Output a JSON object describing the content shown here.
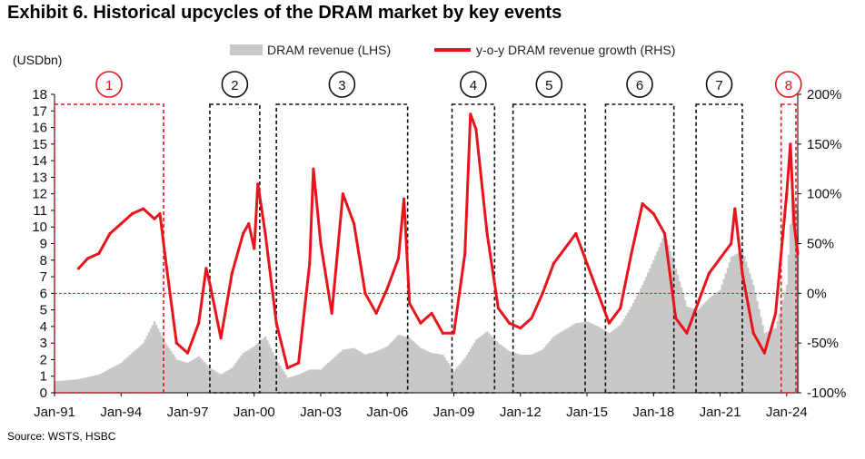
{
  "header": {
    "title": "Exhibit 6. Historical upcycles of the DRAM market by key events",
    "source": "Source: WSTS, HSBC"
  },
  "chart_data": {
    "type": "bar+line",
    "title": "Exhibit 6. Historical upcycles of the DRAM market by key events",
    "ylabel_left": "(USDbn)",
    "ylim_left": [
      0,
      18
    ],
    "yticks_left": [
      "0",
      "1",
      "2",
      "3",
      "4",
      "5",
      "6",
      "7",
      "8",
      "9",
      "10",
      "11",
      "12",
      "13",
      "14",
      "15",
      "16",
      "17",
      "18"
    ],
    "ylim_right": [
      -100,
      200
    ],
    "yticks_right": [
      "-100%",
      "-50%",
      "0%",
      "50%",
      "100%",
      "150%",
      "200%"
    ],
    "xticks": [
      "Jan-91",
      "Jan-94",
      "Jan-97",
      "Jan-00",
      "Jan-03",
      "Jan-06",
      "Jan-09",
      "Jan-12",
      "Jan-15",
      "Jan-18",
      "Jan-21",
      "Jan-24"
    ],
    "x_start": "Jan-91",
    "x_end": "Jul-24",
    "legend": [
      "DRAM revenue (LHS)",
      "y-o-y DRAM revenue growth (RHS)"
    ],
    "colors": {
      "revenue": "#c8c8c8",
      "growth": "#e8141c",
      "box_red": "#e8141c",
      "box_black": "#111111"
    },
    "revenue_lhs": {
      "name": "DRAM revenue (LHS)",
      "points": [
        [
          "Jan-91",
          0.7
        ],
        [
          "Jan-92",
          0.8
        ],
        [
          "Jan-93",
          1.1
        ],
        [
          "Jan-94",
          1.8
        ],
        [
          "Jan-95",
          3.0
        ],
        [
          "Jul-95",
          4.3
        ],
        [
          "Jan-96",
          3.0
        ],
        [
          "Jul-96",
          2.0
        ],
        [
          "Jan-97",
          1.8
        ],
        [
          "Jul-97",
          2.2
        ],
        [
          "Jan-98",
          1.5
        ],
        [
          "Jul-98",
          1.1
        ],
        [
          "Jan-99",
          1.5
        ],
        [
          "Jul-99",
          2.4
        ],
        [
          "Jan-00",
          2.8
        ],
        [
          "Jul-00",
          3.4
        ],
        [
          "Jan-01",
          2.0
        ],
        [
          "Jul-01",
          0.9
        ],
        [
          "Jan-02",
          1.1
        ],
        [
          "Jul-02",
          1.4
        ],
        [
          "Jan-03",
          1.4
        ],
        [
          "Jul-03",
          2.0
        ],
        [
          "Jan-04",
          2.6
        ],
        [
          "Jul-04",
          2.7
        ],
        [
          "Jan-05",
          2.3
        ],
        [
          "Jul-05",
          2.5
        ],
        [
          "Jan-06",
          2.8
        ],
        [
          "Jul-06",
          3.5
        ],
        [
          "Jan-07",
          3.3
        ],
        [
          "Jul-07",
          2.7
        ],
        [
          "Jan-08",
          2.4
        ],
        [
          "Jul-08",
          2.3
        ],
        [
          "Jan-09",
          1.3
        ],
        [
          "Jul-09",
          2.1
        ],
        [
          "Jan-10",
          3.2
        ],
        [
          "Jul-10",
          3.7
        ],
        [
          "Jan-11",
          3.0
        ],
        [
          "Jul-11",
          2.5
        ],
        [
          "Jan-12",
          2.3
        ],
        [
          "Jul-12",
          2.3
        ],
        [
          "Jan-13",
          2.6
        ],
        [
          "Jul-13",
          3.4
        ],
        [
          "Jan-14",
          3.8
        ],
        [
          "Jul-14",
          4.2
        ],
        [
          "Jan-15",
          4.3
        ],
        [
          "Jul-15",
          4.0
        ],
        [
          "Jan-16",
          3.6
        ],
        [
          "Jul-16",
          4.1
        ],
        [
          "Jan-17",
          5.2
        ],
        [
          "Jul-17",
          6.5
        ],
        [
          "Jan-18",
          8.0
        ],
        [
          "Jul-18",
          9.6
        ],
        [
          "Jan-19",
          7.5
        ],
        [
          "Jul-19",
          5.2
        ],
        [
          "Jan-20",
          5.0
        ],
        [
          "Jul-20",
          5.7
        ],
        [
          "Jan-21",
          6.2
        ],
        [
          "Jul-21",
          8.2
        ],
        [
          "Jan-22",
          8.6
        ],
        [
          "Jul-22",
          6.5
        ],
        [
          "Jan-23",
          3.6
        ],
        [
          "Jul-23",
          3.9
        ],
        [
          "Jan-24",
          6.5
        ],
        [
          "Apr-24",
          12.0
        ],
        [
          "Jul-24",
          11.0
        ]
      ]
    },
    "growth_rhs": {
      "name": "y-o-y DRAM revenue growth (RHS)",
      "points": [
        [
          "Feb-92",
          25
        ],
        [
          "Jul-92",
          35
        ],
        [
          "Jan-93",
          40
        ],
        [
          "Jul-93",
          60
        ],
        [
          "Jan-94",
          70
        ],
        [
          "Jul-94",
          80
        ],
        [
          "Jan-95",
          85
        ],
        [
          "Jul-95",
          75
        ],
        [
          "Oct-95",
          80
        ],
        [
          "Jan-96",
          35
        ],
        [
          "Jul-96",
          -50
        ],
        [
          "Jan-97",
          -60
        ],
        [
          "Jul-97",
          -30
        ],
        [
          "Nov-97",
          25
        ],
        [
          "Jan-98",
          10
        ],
        [
          "Jul-98",
          -45
        ],
        [
          "Jan-99",
          20
        ],
        [
          "Jul-99",
          60
        ],
        [
          "Oct-99",
          70
        ],
        [
          "Jan-00",
          45
        ],
        [
          "Mar-00",
          110
        ],
        [
          "Jul-00",
          60
        ],
        [
          "Jan-01",
          -30
        ],
        [
          "Jul-01",
          -75
        ],
        [
          "Jan-02",
          -70
        ],
        [
          "Jul-02",
          30
        ],
        [
          "Sep-02",
          125
        ],
        [
          "Jan-03",
          50
        ],
        [
          "Jul-03",
          -20
        ],
        [
          "Jan-04",
          100
        ],
        [
          "Jul-04",
          70
        ],
        [
          "Jan-05",
          0
        ],
        [
          "Jul-05",
          -20
        ],
        [
          "Jan-06",
          5
        ],
        [
          "Jul-06",
          35
        ],
        [
          "Oct-06",
          95
        ],
        [
          "Jan-07",
          -10
        ],
        [
          "Jul-07",
          -30
        ],
        [
          "Jan-08",
          -20
        ],
        [
          "Jul-08",
          -40
        ],
        [
          "Jan-09",
          -40
        ],
        [
          "Jul-09",
          40
        ],
        [
          "Oct-09",
          180
        ],
        [
          "Jan-10",
          165
        ],
        [
          "Jul-10",
          60
        ],
        [
          "Jan-11",
          -15
        ],
        [
          "Jul-11",
          -30
        ],
        [
          "Jan-12",
          -35
        ],
        [
          "Jul-12",
          -25
        ],
        [
          "Jan-13",
          0
        ],
        [
          "Jul-13",
          30
        ],
        [
          "Jan-14",
          45
        ],
        [
          "Jul-14",
          60
        ],
        [
          "Jan-15",
          30
        ],
        [
          "Jul-15",
          0
        ],
        [
          "Jan-16",
          -30
        ],
        [
          "Jul-16",
          -15
        ],
        [
          "Jan-17",
          40
        ],
        [
          "Jul-17",
          90
        ],
        [
          "Jan-18",
          80
        ],
        [
          "Jul-18",
          60
        ],
        [
          "Jan-19",
          -25
        ],
        [
          "Jul-19",
          -40
        ],
        [
          "Jan-20",
          -10
        ],
        [
          "Jul-20",
          20
        ],
        [
          "Jan-21",
          35
        ],
        [
          "Jul-21",
          50
        ],
        [
          "Sep-21",
          85
        ],
        [
          "Jan-22",
          20
        ],
        [
          "Jul-22",
          -40
        ],
        [
          "Jan-23",
          -60
        ],
        [
          "Jul-23",
          -20
        ],
        [
          "Jan-24",
          100
        ],
        [
          "Mar-24",
          150
        ],
        [
          "May-24",
          70
        ],
        [
          "Jul-24",
          40
        ]
      ]
    },
    "cycle_boxes": [
      {
        "label": "1",
        "start": "Jan-91",
        "end": "Dec-95",
        "color": "red"
      },
      {
        "label": "2",
        "start": "Jan-98",
        "end": "Apr-00",
        "color": "black"
      },
      {
        "label": "3",
        "start": "Jan-01",
        "end": "Dec-06",
        "color": "black"
      },
      {
        "label": "4",
        "start": "Dec-08",
        "end": "Nov-10",
        "color": "black"
      },
      {
        "label": "5",
        "start": "Sep-11",
        "end": "Dec-14",
        "color": "black"
      },
      {
        "label": "6",
        "start": "Nov-15",
        "end": "Dec-18",
        "color": "black"
      },
      {
        "label": "7",
        "start": "Dec-19",
        "end": "Jan-22",
        "color": "black"
      },
      {
        "label": "8",
        "start": "Oct-23",
        "end": "Jun-24",
        "color": "red"
      }
    ]
  }
}
